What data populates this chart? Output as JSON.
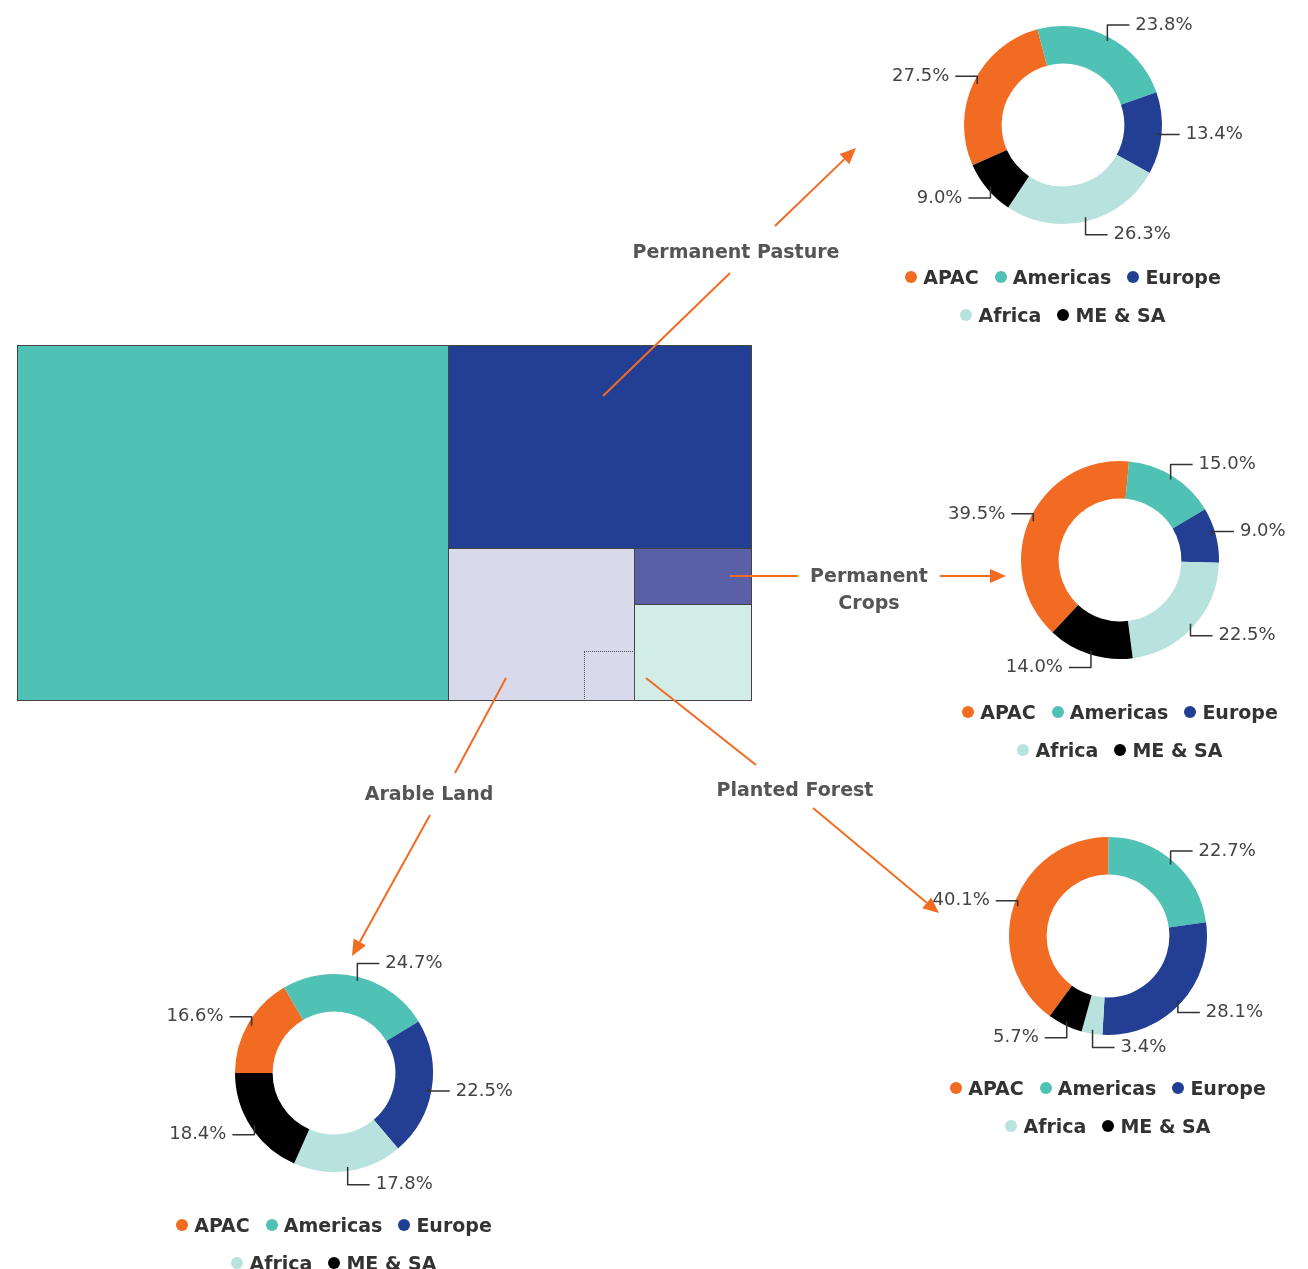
{
  "chart_data": [
    {
      "type": "donut",
      "title": "Permanent Pasture",
      "categories": [
        "APAC",
        "Americas",
        "Europe",
        "Africa",
        "ME & SA"
      ],
      "values": [
        27.5,
        23.8,
        13.4,
        26.3,
        9.0
      ],
      "colors": [
        "#f26b23",
        "#4fc1b5",
        "#233f94",
        "#b8e2dd",
        "#000000"
      ],
      "value_labels": [
        "27.5%",
        "23.8%",
        "13.4%",
        "26.3%",
        "9.0%"
      ],
      "legend": "bottom"
    },
    {
      "type": "donut",
      "title": "Permanent Crops",
      "categories": [
        "APAC",
        "Americas",
        "Europe",
        "Africa",
        "ME & SA"
      ],
      "values": [
        39.5,
        15.0,
        9.0,
        22.5,
        14.0
      ],
      "colors": [
        "#f26b23",
        "#4fc1b5",
        "#233f94",
        "#b8e2dd",
        "#000000"
      ],
      "value_labels": [
        "39.5%",
        "15.0%",
        "9.0%",
        "22.5%",
        "14.0%"
      ],
      "legend": "bottom"
    },
    {
      "type": "donut",
      "title": "Planted Forest",
      "categories": [
        "APAC",
        "Americas",
        "Europe",
        "Africa",
        "ME & SA"
      ],
      "values": [
        40.1,
        22.7,
        28.1,
        3.4,
        5.7
      ],
      "colors": [
        "#f26b23",
        "#4fc1b5",
        "#233f94",
        "#b8e2dd",
        "#000000"
      ],
      "value_labels": [
        "40.1%",
        "22.7%",
        "28.1%",
        "3.4%",
        "5.7%"
      ],
      "legend": "bottom"
    },
    {
      "type": "donut",
      "title": "Arable Land",
      "categories": [
        "APAC",
        "Americas",
        "Europe",
        "Africa",
        "ME & SA"
      ],
      "values": [
        16.6,
        24.7,
        22.5,
        17.8,
        18.4
      ],
      "colors": [
        "#f26b23",
        "#4fc1b5",
        "#233f94",
        "#b8e2dd",
        "#000000"
      ],
      "value_labels": [
        "16.6%",
        "24.7%",
        "22.5%",
        "17.8%",
        "18.4%"
      ],
      "legend": "bottom"
    }
  ]
}
